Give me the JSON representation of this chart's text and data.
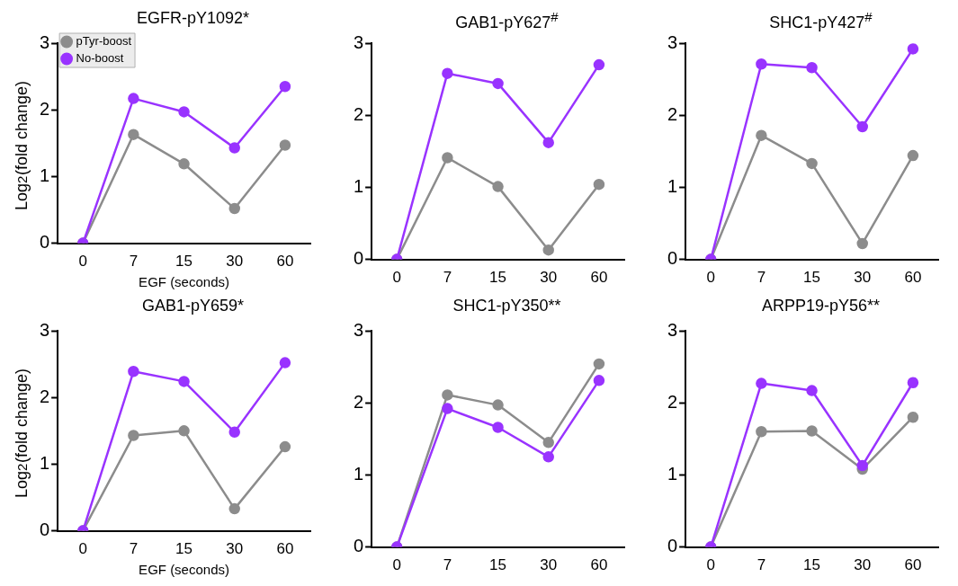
{
  "chart_data": [
    {
      "type": "line",
      "title": "EGFR-pY1092*",
      "xlabel": "EGF (seconds)",
      "ylabel": "Log$_{2}$(fold change)",
      "categories": [
        "0",
        "7",
        "15",
        "30",
        "60"
      ],
      "ylim": [
        0,
        3
      ],
      "yticks": [
        0,
        1,
        2,
        3
      ],
      "marker": "circle",
      "legend": "top left",
      "series": [
        {
          "name": "pTyr-boost",
          "color": "#8c8c8c",
          "values": [
            0,
            1.63,
            1.19,
            0.52,
            1.47
          ]
        },
        {
          "name": "No-boost",
          "color": "#9933ff",
          "values": [
            0,
            2.17,
            1.97,
            1.43,
            2.35
          ]
        }
      ]
    },
    {
      "type": "line",
      "title": "GAB1-pY627$^{#}$",
      "categories": [
        "0",
        "7",
        "15",
        "30",
        "60"
      ],
      "ylim": [
        0,
        3
      ],
      "yticks": [
        0,
        1,
        2,
        3
      ],
      "marker": "circle",
      "series": [
        {
          "color": "#8c8c8c",
          "values": [
            0,
            1.41,
            1.01,
            0.13,
            1.04
          ]
        },
        {
          "color": "#9933ff",
          "values": [
            0,
            2.58,
            2.44,
            1.62,
            2.7
          ]
        }
      ]
    },
    {
      "type": "line",
      "title": "SHC1-pY427$^{#}$",
      "categories": [
        "0",
        "7",
        "15",
        "30",
        "60"
      ],
      "ylim": [
        0,
        3
      ],
      "yticks": [
        0,
        1,
        2,
        3
      ],
      "marker": "circle",
      "series": [
        {
          "color": "#8c8c8c",
          "values": [
            0,
            1.72,
            1.33,
            0.22,
            1.44
          ]
        },
        {
          "color": "#9933ff",
          "values": [
            0,
            2.71,
            2.66,
            1.84,
            2.92
          ]
        }
      ]
    },
    {
      "type": "line",
      "title": "GAB1-pY659*",
      "xlabel": "EGF (seconds)",
      "ylabel": "Log$_{2}$(fold change)",
      "categories": [
        "0",
        "7",
        "15",
        "30",
        "60"
      ],
      "ylim": [
        0,
        3
      ],
      "yticks": [
        0,
        1,
        2,
        3
      ],
      "marker": "circle",
      "series": [
        {
          "color": "#8c8c8c",
          "values": [
            0,
            1.43,
            1.5,
            0.33,
            1.26
          ]
        },
        {
          "color": "#9933ff",
          "values": [
            0,
            2.39,
            2.24,
            1.48,
            2.52
          ]
        }
      ]
    },
    {
      "type": "line",
      "title": "SHC1-pY350**",
      "categories": [
        "0",
        "7",
        "15",
        "30",
        "60"
      ],
      "ylim": [
        0,
        3
      ],
      "yticks": [
        0,
        1,
        2,
        3
      ],
      "marker": "circle",
      "series": [
        {
          "color": "#8c8c8c",
          "values": [
            0,
            2.11,
            1.97,
            1.45,
            2.54
          ]
        },
        {
          "color": "#9933ff",
          "values": [
            0,
            1.92,
            1.66,
            1.25,
            2.31
          ]
        }
      ]
    },
    {
      "type": "line",
      "title": "ARPP19-pY56**",
      "categories": [
        "0",
        "7",
        "15",
        "30",
        "60"
      ],
      "ylim": [
        0,
        3
      ],
      "yticks": [
        0,
        1,
        2,
        3
      ],
      "marker": "circle",
      "series": [
        {
          "color": "#8c8c8c",
          "values": [
            0,
            1.6,
            1.61,
            1.08,
            1.8
          ]
        },
        {
          "color": "#9933ff",
          "values": [
            0,
            2.27,
            2.17,
            1.13,
            2.28
          ]
        }
      ]
    }
  ]
}
